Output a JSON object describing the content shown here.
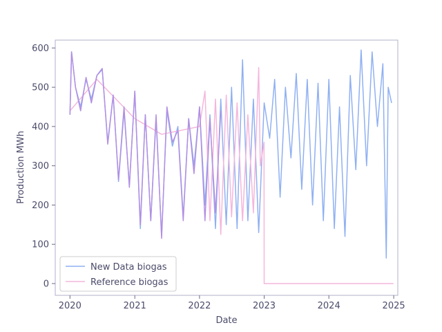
{
  "chart_data": {
    "type": "line",
    "title": "",
    "xlabel": "Date",
    "ylabel": "Production MWh",
    "xlim": [
      "2019-10-10",
      "2025-01-24"
    ],
    "ylim": [
      -30,
      620
    ],
    "x_ticks": [
      {
        "date": "2020-01-01",
        "label": "2020"
      },
      {
        "date": "2021-01-01",
        "label": "2021"
      },
      {
        "date": "2022-01-01",
        "label": "2022"
      },
      {
        "date": "2023-01-01",
        "label": "2023"
      },
      {
        "date": "2024-01-01",
        "label": "2024"
      },
      {
        "date": "2025-01-01",
        "label": "2025"
      }
    ],
    "y_ticks": [
      0,
      100,
      200,
      300,
      400,
      500,
      600
    ],
    "grid": false,
    "legend_position": "lower-left",
    "series": [
      {
        "name": "New Data biogas",
        "color": "#8fb0f2",
        "points": [
          [
            "2020-01-01",
            430
          ],
          [
            "2020-01-10",
            590
          ],
          [
            "2020-02-01",
            500
          ],
          [
            "2020-03-01",
            450
          ],
          [
            "2020-04-01",
            520
          ],
          [
            "2020-05-01",
            470
          ],
          [
            "2020-06-01",
            530
          ],
          [
            "2020-07-01",
            545
          ],
          [
            "2020-08-01",
            360
          ],
          [
            "2020-09-01",
            480
          ],
          [
            "2020-10-01",
            260
          ],
          [
            "2020-11-01",
            440
          ],
          [
            "2020-12-01",
            250
          ],
          [
            "2021-01-01",
            490
          ],
          [
            "2021-02-01",
            140
          ],
          [
            "2021-03-01",
            430
          ],
          [
            "2021-04-01",
            160
          ],
          [
            "2021-05-01",
            420
          ],
          [
            "2021-06-01",
            120
          ],
          [
            "2021-07-01",
            440
          ],
          [
            "2021-08-01",
            350
          ],
          [
            "2021-09-01",
            400
          ],
          [
            "2021-10-01",
            170
          ],
          [
            "2021-11-01",
            420
          ],
          [
            "2021-12-01",
            300
          ],
          [
            "2022-01-01",
            450
          ],
          [
            "2022-02-01",
            200
          ],
          [
            "2022-03-01",
            430
          ],
          [
            "2022-04-01",
            140
          ],
          [
            "2022-05-01",
            470
          ],
          [
            "2022-06-01",
            150
          ],
          [
            "2022-07-01",
            500
          ],
          [
            "2022-08-01",
            140
          ],
          [
            "2022-09-01",
            570
          ],
          [
            "2022-10-01",
            160
          ],
          [
            "2022-11-01",
            470
          ],
          [
            "2022-12-01",
            130
          ],
          [
            "2023-01-01",
            460
          ],
          [
            "2023-02-01",
            370
          ],
          [
            "2023-03-01",
            520
          ],
          [
            "2023-04-01",
            220
          ],
          [
            "2023-05-01",
            500
          ],
          [
            "2023-06-01",
            320
          ],
          [
            "2023-07-01",
            535
          ],
          [
            "2023-08-01",
            240
          ],
          [
            "2023-09-01",
            520
          ],
          [
            "2023-10-01",
            200
          ],
          [
            "2023-11-01",
            510
          ],
          [
            "2023-12-01",
            160
          ],
          [
            "2024-01-01",
            520
          ],
          [
            "2024-02-01",
            140
          ],
          [
            "2024-03-01",
            450
          ],
          [
            "2024-04-01",
            120
          ],
          [
            "2024-05-01",
            530
          ],
          [
            "2024-06-01",
            290
          ],
          [
            "2024-07-01",
            595
          ],
          [
            "2024-08-01",
            300
          ],
          [
            "2024-09-01",
            590
          ],
          [
            "2024-10-01",
            400
          ],
          [
            "2024-11-01",
            560
          ],
          [
            "2024-11-20",
            65
          ],
          [
            "2024-12-01",
            500
          ],
          [
            "2024-12-20",
            460
          ]
        ]
      },
      {
        "name": "Reference biogas",
        "color": "#f4b6dc",
        "points": [
          [
            "2020-01-01",
            440
          ],
          [
            "2020-06-01",
            520
          ],
          [
            "2021-01-01",
            420
          ],
          [
            "2021-06-01",
            380
          ],
          [
            "2022-01-01",
            400
          ],
          [
            "2022-02-01",
            490
          ],
          [
            "2022-03-01",
            160
          ],
          [
            "2022-04-01",
            470
          ],
          [
            "2022-05-01",
            125
          ],
          [
            "2022-06-01",
            480
          ],
          [
            "2022-07-01",
            170
          ],
          [
            "2022-08-01",
            460
          ],
          [
            "2022-09-01",
            160
          ],
          [
            "2022-10-01",
            430
          ],
          [
            "2022-11-01",
            180
          ],
          [
            "2022-12-01",
            550
          ],
          [
            "2022-12-10",
            300
          ],
          [
            "2022-12-31",
            360
          ],
          [
            "2023-01-01",
            0
          ],
          [
            "2024-12-31",
            0
          ]
        ]
      },
      {
        "name": "",
        "color": "#b38fe3",
        "points": [
          [
            "2020-01-01",
            430
          ],
          [
            "2020-01-10",
            590
          ],
          [
            "2020-02-01",
            500
          ],
          [
            "2020-03-01",
            440
          ],
          [
            "2020-04-01",
            525
          ],
          [
            "2020-05-01",
            460
          ],
          [
            "2020-06-01",
            530
          ],
          [
            "2020-07-01",
            548
          ],
          [
            "2020-08-01",
            355
          ],
          [
            "2020-09-01",
            480
          ],
          [
            "2020-10-01",
            265
          ],
          [
            "2020-11-01",
            450
          ],
          [
            "2020-12-01",
            245
          ],
          [
            "2021-01-01",
            490
          ],
          [
            "2021-02-01",
            150
          ],
          [
            "2021-03-01",
            430
          ],
          [
            "2021-04-01",
            160
          ],
          [
            "2021-05-01",
            430
          ],
          [
            "2021-06-01",
            115
          ],
          [
            "2021-07-01",
            450
          ],
          [
            "2021-08-01",
            360
          ],
          [
            "2021-09-01",
            390
          ],
          [
            "2021-10-01",
            160
          ],
          [
            "2021-11-01",
            420
          ],
          [
            "2021-12-01",
            280
          ],
          [
            "2022-01-01",
            450
          ],
          [
            "2022-02-01",
            160
          ],
          [
            "2022-03-01",
            420
          ],
          [
            "2022-04-01",
            180
          ],
          [
            "2022-05-01",
            440
          ]
        ]
      }
    ]
  }
}
